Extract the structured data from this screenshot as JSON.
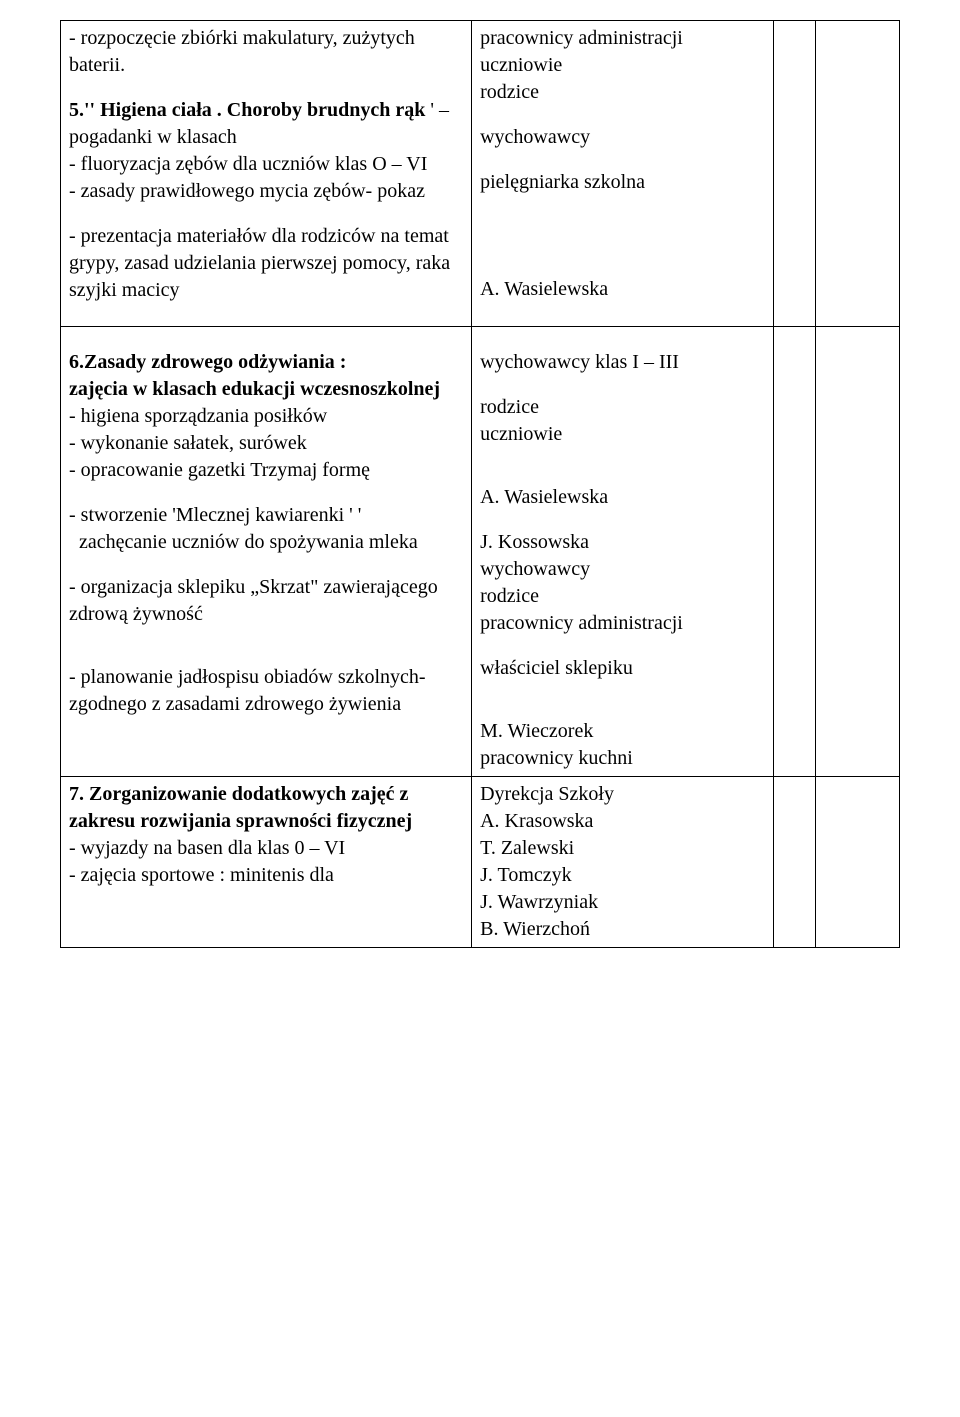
{
  "rows": [
    {
      "left": [
        {
          "text": "- rozpoczęcie zbiórki makulatury, zużytych baterii."
        },
        {
          "gap": true
        },
        {
          "text": "5.'' Higiena ciała . Choroby brudnych rąk ' – ",
          "boldPrefix": {
            "p1": "5.'' Higiena ciała . Choroby brudnych rąk",
            "p2": " ' – pogadanki w klasach"
          }
        },
        {
          "text": "- fluoryzacja zębów dla uczniów klas O – VI"
        },
        {
          "text": "- zasady prawidłowego mycia zębów- pokaz"
        },
        {
          "gap": true
        },
        {
          "text": "- prezentacja materiałów dla rodziców na temat grypy, zasad udzielania pierwszej pomocy, raka szyjki macicy"
        }
      ],
      "right": [
        {
          "text": "pracownicy administracji"
        },
        {
          "text": "uczniowie"
        },
        {
          "text": "rodzice"
        },
        {
          "gap": true
        },
        {
          "text": "wychowawcy"
        },
        {
          "gap": true
        },
        {
          "text": "pielęgniarka szkolna"
        },
        {
          "biggap": true
        },
        {
          "biggap": true
        },
        {
          "text": "A. Wasielewska"
        }
      ]
    },
    {
      "left": [
        {
          "gap": true
        },
        {
          "boldPrefix": {
            "p1": "6.Zasady zdrowego odżywiania :",
            "p2": " "
          }
        },
        {
          "boldPrefix": {
            "p1": "zajęcia w klasach edukacji wczesnoszkolnej",
            "p2": ""
          }
        },
        {
          "text": "- higiena sporządzania posiłków"
        },
        {
          "text": "- wykonanie sałatek, surówek"
        },
        {
          "text": "- opracowanie gazetki Trzymaj formę"
        },
        {
          "gap": true
        },
        {
          "text": "- stworzenie 'Mlecznej kawiarenki ' '"
        },
        {
          "text": "  zachęcanie uczniów do spożywania mleka"
        },
        {
          "gap": true
        },
        {
          "text": "- organizacja sklepiku „Skrzat\" zawierającego zdrową żywność"
        },
        {
          "gap": true
        },
        {
          "gap": true
        },
        {
          "text": "- planowanie jadłospisu obiadów szkolnych- zgodnego z zasadami zdrowego żywienia"
        }
      ],
      "right": [
        {
          "gap": true
        },
        {
          "text": "wychowawcy klas I – III"
        },
        {
          "gap": true
        },
        {
          "text": "rodzice"
        },
        {
          "text": "uczniowie"
        },
        {
          "gap": true
        },
        {
          "gap": true
        },
        {
          "text": "A. Wasielewska"
        },
        {
          "gap": true
        },
        {
          "text": "J. Kossowska"
        },
        {
          "text": "wychowawcy"
        },
        {
          "text": "rodzice"
        },
        {
          "text": "pracownicy administracji"
        },
        {
          "gap": true
        },
        {
          "text": "właściciel sklepiku"
        },
        {
          "gap": true
        },
        {
          "gap": true
        },
        {
          "text": "M. Wieczorek"
        },
        {
          "text": "pracownicy kuchni"
        }
      ]
    },
    {
      "left": [
        {
          "boldPrefix": {
            "p1": "7. Zorganizowanie dodatkowych zajęć z zakresu rozwijania sprawności fizycznej",
            "p2": ""
          }
        },
        {
          "text": "- wyjazdy na basen dla klas 0 – VI"
        },
        {
          "text": "- zajęcia sportowe : minitenis dla"
        }
      ],
      "right": [
        {
          "text": "Dyrekcja Szkoły"
        },
        {
          "text": "A. Krasowska"
        },
        {
          "text": "T. Zalewski"
        },
        {
          "text": "J. Tomczyk"
        },
        {
          "text": "J. Wawrzyniak"
        },
        {
          "text": "B. Wierzchoń"
        }
      ]
    }
  ]
}
